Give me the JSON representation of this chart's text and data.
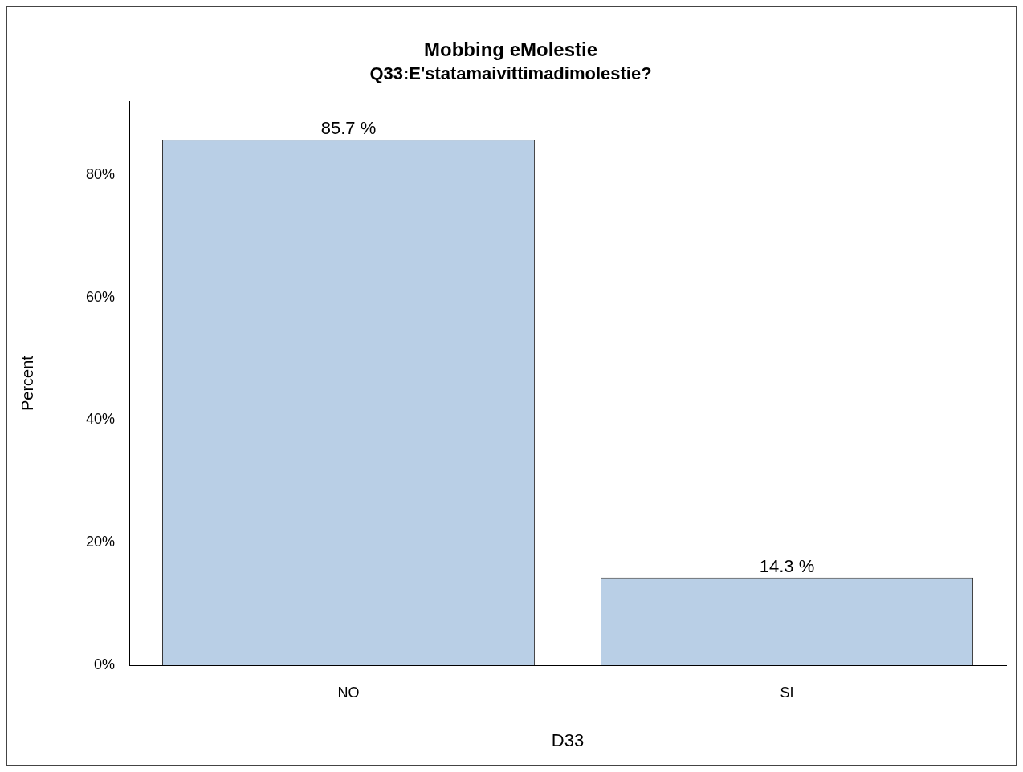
{
  "chart_data": {
    "type": "bar",
    "title": "Mobbing eMolestie",
    "subtitle": "Q33:E'statamaivittimadimolestie?",
    "xlabel": "D33",
    "ylabel": "Percent",
    "categories": [
      "NO",
      "SI"
    ],
    "values": [
      85.7,
      14.3
    ],
    "value_labels": [
      "85.7 %",
      "14.3 %"
    ],
    "color": "#b9cfe6",
    "ylim": [
      0,
      92
    ],
    "yticks": [
      {
        "value": 0,
        "label": "0%"
      },
      {
        "value": 20,
        "label": "20%"
      },
      {
        "value": 40,
        "label": "40%"
      },
      {
        "value": 60,
        "label": "60%"
      },
      {
        "value": 80,
        "label": "80%"
      }
    ],
    "grid": false,
    "legend": false
  }
}
